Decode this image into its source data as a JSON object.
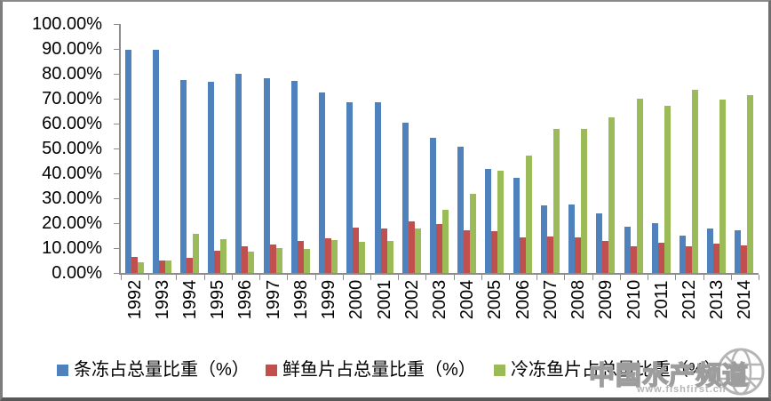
{
  "window": {
    "background": "#ffffff",
    "frame_border_color": "#7d7d7d"
  },
  "chart_data": {
    "type": "bar",
    "categories": [
      "1992",
      "1993",
      "1994",
      "1995",
      "1996",
      "1997",
      "1998",
      "1999",
      "2000",
      "2001",
      "2002",
      "2003",
      "2004",
      "2005",
      "2006",
      "2007",
      "2008",
      "2009",
      "2010",
      "2011",
      "2012",
      "2013",
      "2014"
    ],
    "series": [
      {
        "name": "条冻占总量比重（%）",
        "color": "#4F81BD",
        "values": [
          89.5,
          89.5,
          77.6,
          76.8,
          80.1,
          78.2,
          77.0,
          72.6,
          68.4,
          68.4,
          60.4,
          54.4,
          50.8,
          41.9,
          38.1,
          27.0,
          27.6,
          24.0,
          18.7,
          20.0,
          15.1,
          18.0,
          17.0
        ]
      },
      {
        "name": "鲜鱼片占总量比重（%）",
        "color": "#C0504D",
        "values": [
          6.3,
          5.1,
          6.0,
          9.0,
          10.7,
          11.5,
          12.7,
          13.8,
          18.2,
          17.9,
          20.8,
          19.8,
          17.0,
          16.7,
          14.3,
          14.6,
          14.2,
          12.9,
          10.7,
          12.1,
          10.7,
          11.9,
          11.2
        ]
      },
      {
        "name": "冷冻鱼片占总量比重（%）",
        "color": "#9BBB59",
        "values": [
          4.2,
          5.1,
          15.8,
          13.6,
          8.7,
          10.0,
          9.5,
          13.1,
          12.6,
          13.0,
          17.9,
          25.2,
          31.8,
          41.1,
          47.0,
          58.0,
          57.7,
          62.5,
          70.0,
          67.0,
          73.5,
          69.6,
          71.5
        ]
      }
    ],
    "y_tick_labels": [
      "0.00%",
      "10.00%",
      "20.00%",
      "30.00%",
      "40.00%",
      "50.00%",
      "60.00%",
      "70.00%",
      "80.00%",
      "90.00%",
      "100.00%"
    ],
    "ylim": [
      0,
      100
    ],
    "grid": false,
    "legend_position": "bottom",
    "axis_color": "#8c8c8c",
    "text_color": "#000000"
  },
  "watermark": {
    "title": "中国水产频道",
    "url": "www.fishfirst.cn"
  }
}
